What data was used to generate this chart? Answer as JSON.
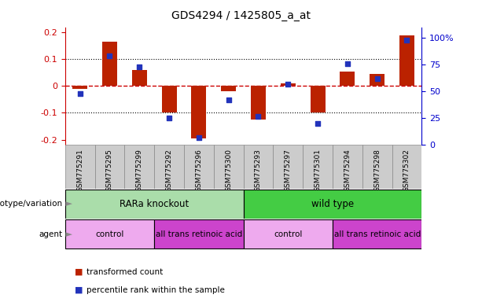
{
  "title": "GDS4294 / 1425805_a_at",
  "samples": [
    "GSM775291",
    "GSM775295",
    "GSM775299",
    "GSM775292",
    "GSM775296",
    "GSM775300",
    "GSM775293",
    "GSM775297",
    "GSM775301",
    "GSM775294",
    "GSM775298",
    "GSM775302"
  ],
  "transformed_count": [
    -0.01,
    0.165,
    0.06,
    -0.1,
    -0.195,
    -0.02,
    -0.125,
    0.01,
    -0.1,
    0.055,
    0.045,
    0.19
  ],
  "percentile_rank": [
    48,
    83,
    73,
    25,
    7,
    42,
    27,
    57,
    20,
    76,
    62,
    98
  ],
  "ylim_left": [
    -0.22,
    0.22
  ],
  "ylim_right": [
    0,
    110
  ],
  "yticks_left": [
    -0.2,
    -0.1,
    0.0,
    0.1,
    0.2
  ],
  "yticks_right": [
    0,
    25,
    50,
    75,
    100
  ],
  "bar_color": "#BB2200",
  "dot_color": "#2233BB",
  "genotype_groups": [
    {
      "label": "RARa knockout",
      "start": 0,
      "end": 6,
      "color": "#AADDAA"
    },
    {
      "label": "wild type",
      "start": 6,
      "end": 12,
      "color": "#44CC44"
    }
  ],
  "agent_groups": [
    {
      "label": "control",
      "start": 0,
      "end": 3,
      "color": "#EEAAEE"
    },
    {
      "label": "all trans retinoic acid",
      "start": 3,
      "end": 6,
      "color": "#CC44CC"
    },
    {
      "label": "control",
      "start": 6,
      "end": 9,
      "color": "#EEAAEE"
    },
    {
      "label": "all trans retinoic acid",
      "start": 9,
      "end": 12,
      "color": "#CC44CC"
    }
  ],
  "legend_items": [
    {
      "label": "transformed count",
      "color": "#BB2200"
    },
    {
      "label": "percentile rank within the sample",
      "color": "#2233BB"
    }
  ],
  "left_axis_color": "#CC0000",
  "right_axis_color": "#0000CC",
  "hline_color": "#CC0000",
  "dotted_color": "#000000",
  "sample_box_color": "#CCCCCC",
  "sample_box_border": "#888888"
}
